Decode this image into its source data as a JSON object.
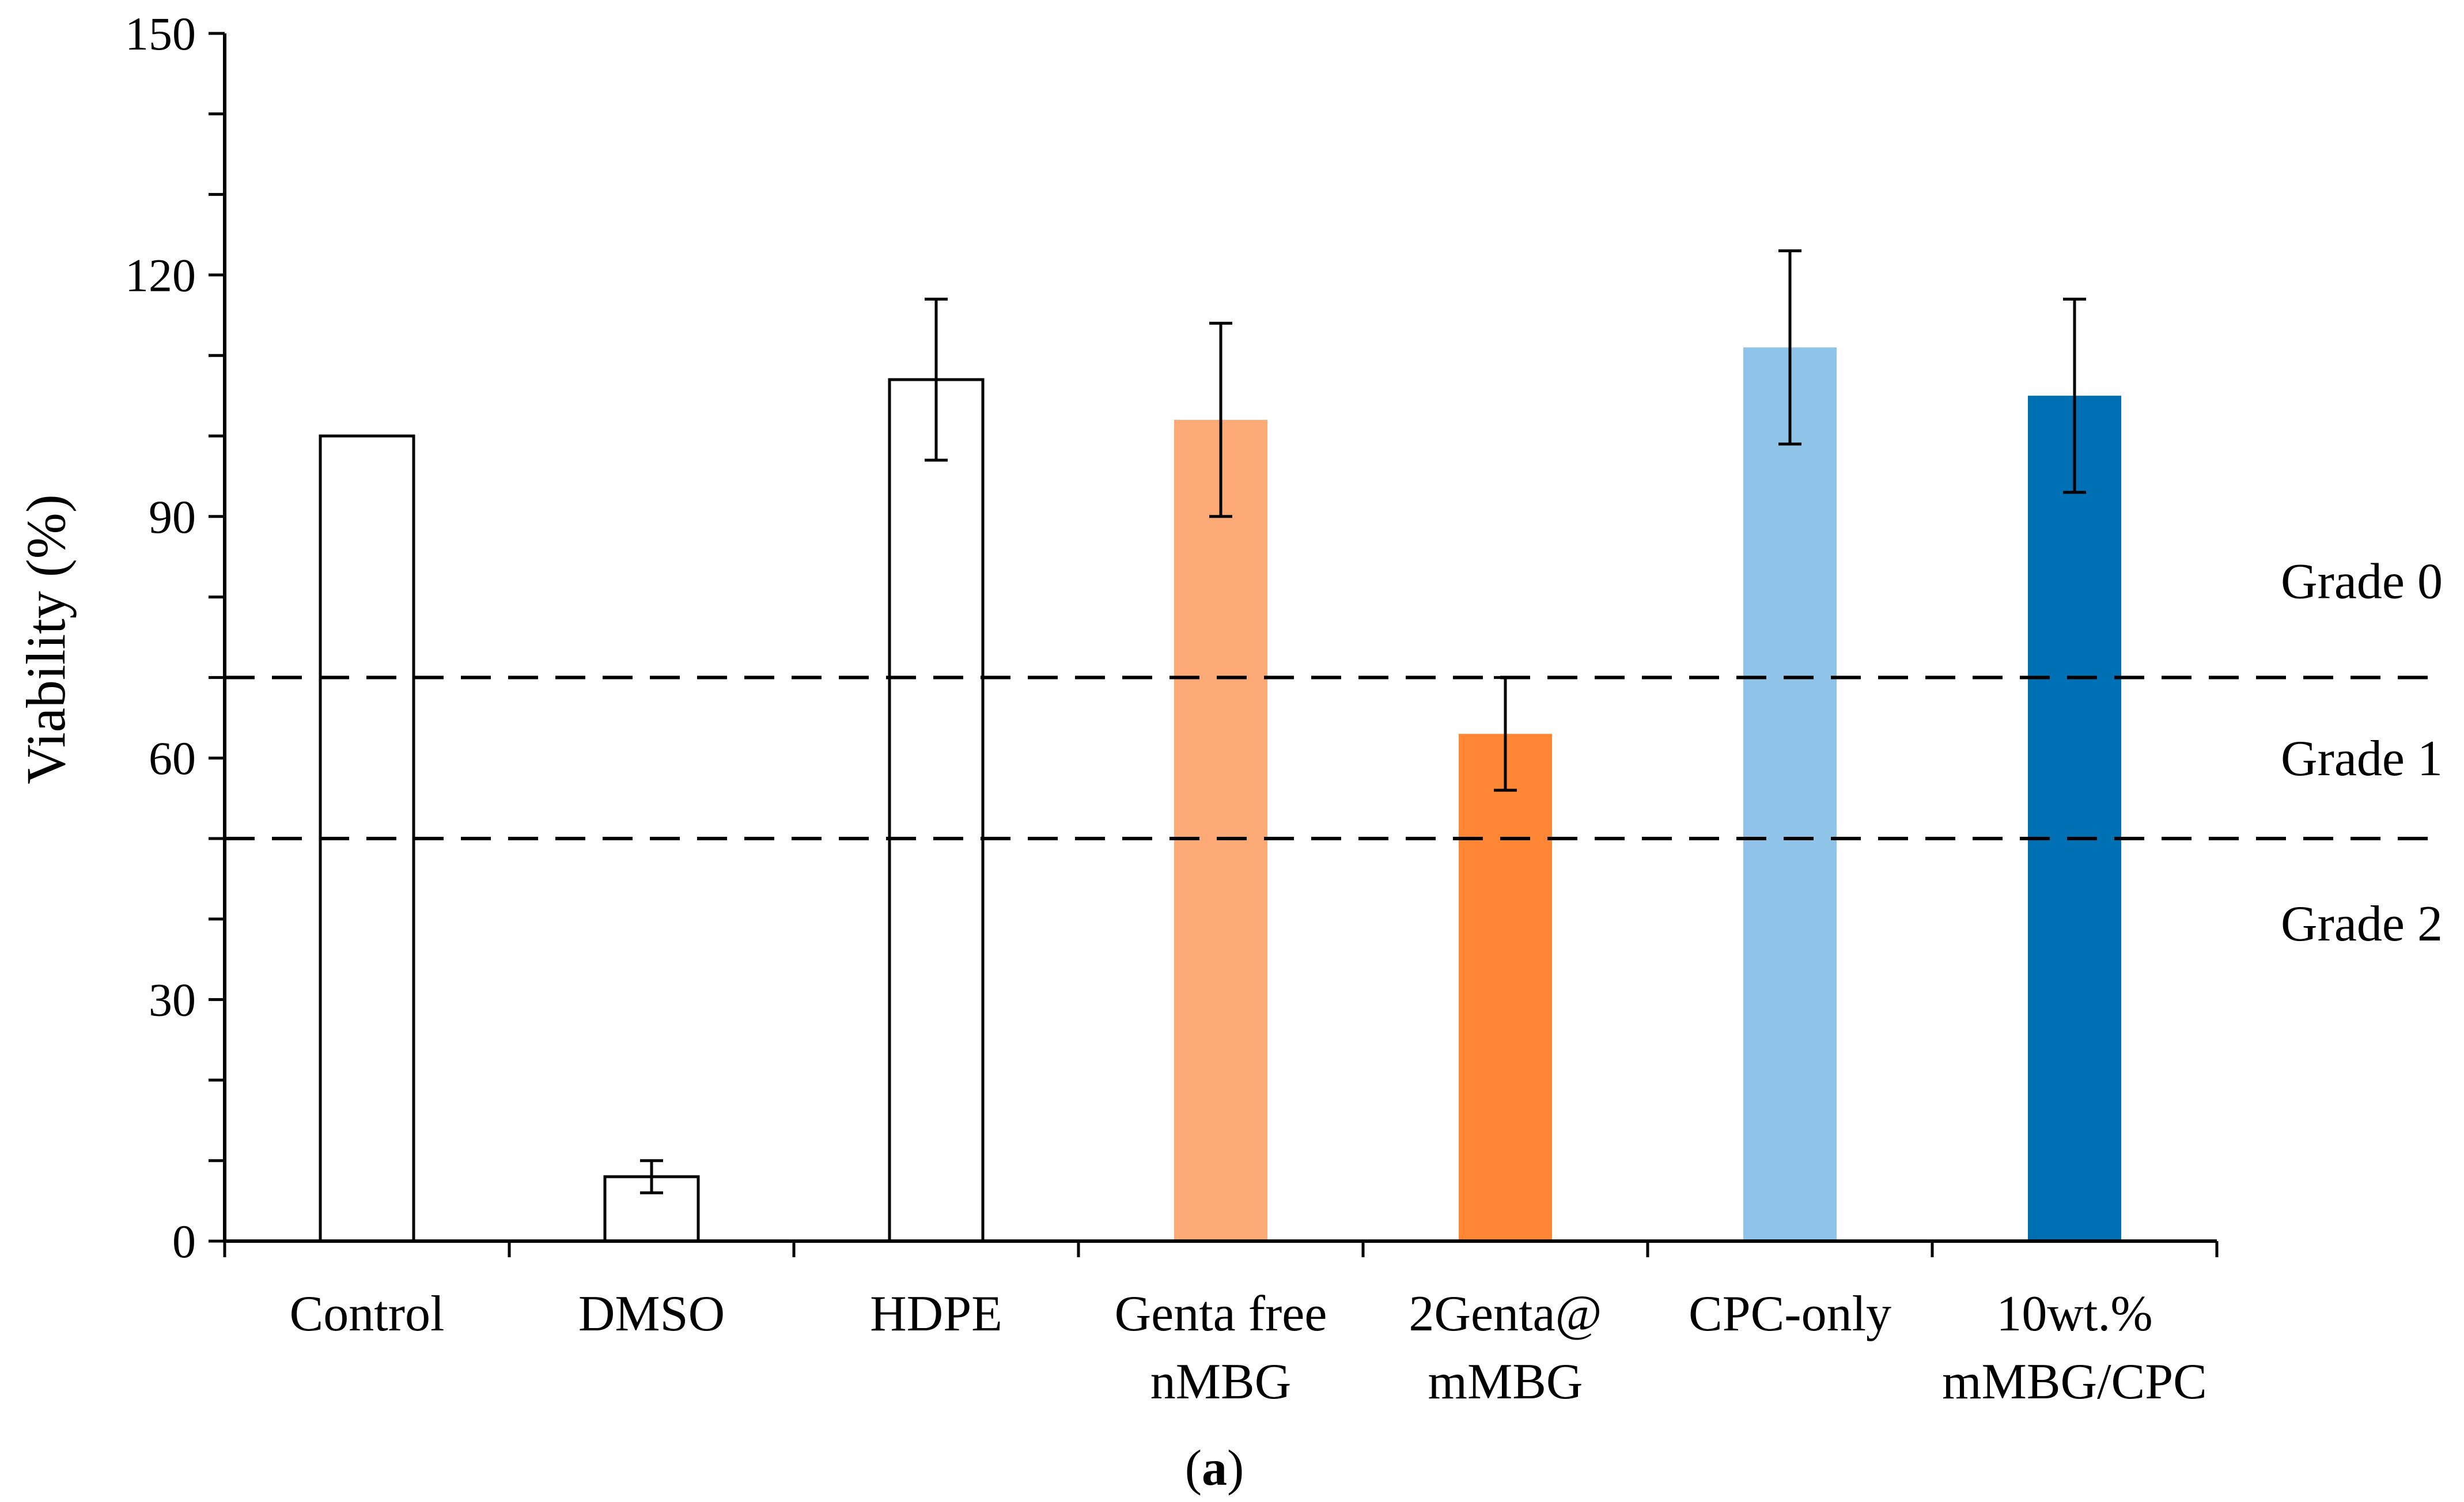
{
  "chart_data": {
    "type": "bar",
    "title": "",
    "xlabel": "",
    "ylabel": "Viability (%)",
    "ylim": [
      0,
      150
    ],
    "yticks": [
      "0",
      "30",
      "60",
      "90",
      "120",
      "150"
    ],
    "grid": false,
    "legend": "none",
    "categories": [
      [
        "Control"
      ],
      [
        "DMSO"
      ],
      [
        "HDPE"
      ],
      [
        "Genta free",
        "nMBG"
      ],
      [
        "2Genta@",
        "mMBG"
      ],
      [
        "CPC-only"
      ],
      [
        "10wt.%",
        "mMBG/CPC"
      ]
    ],
    "values": [
      100,
      8,
      107,
      102,
      63,
      111,
      105
    ],
    "errors": [
      null,
      2,
      10,
      12,
      7,
      12,
      12
    ],
    "bar_fill": [
      "#ffffff",
      "#ffffff",
      "#ffffff",
      "#fdaa77",
      "#fe8634",
      "#8fc3e8",
      "#0070b5"
    ],
    "bar_stroke": [
      "#000000",
      "#000000",
      "#000000",
      "none",
      "none",
      "none",
      "none"
    ],
    "thresholds": [
      {
        "y": 70,
        "style": "dashed"
      },
      {
        "y": 50,
        "style": "dashed"
      }
    ],
    "grade_labels": [
      {
        "text": "Grade 0",
        "y": 82
      },
      {
        "text": "Grade 1",
        "y": 60
      },
      {
        "text": "Grade 2",
        "y": 39.5
      }
    ]
  },
  "caption": {
    "open": "(",
    "letter": "a",
    "close": ")"
  }
}
